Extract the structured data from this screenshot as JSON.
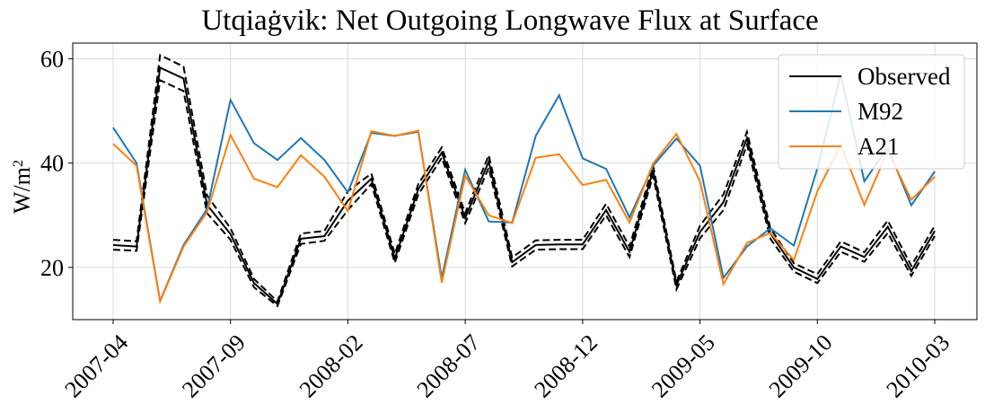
{
  "chart_data": {
    "type": "line",
    "title": "Utqiaġvik: Net Outgoing Longwave Flux at Surface",
    "ylabel_base": "W/m",
    "ylabel_sup": "2",
    "xlabel": "",
    "ylim": [
      10,
      63
    ],
    "yticks": [
      20,
      40,
      60
    ],
    "xticks": [
      "2007-04",
      "2007-09",
      "2008-02",
      "2008-07",
      "2008-12",
      "2009-05",
      "2009-10",
      "2010-03"
    ],
    "x": [
      "2007-04",
      "2007-05",
      "2007-06",
      "2007-07",
      "2007-08",
      "2007-09",
      "2007-10",
      "2007-11",
      "2007-12",
      "2008-01",
      "2008-02",
      "2008-03",
      "2008-04",
      "2008-05",
      "2008-06",
      "2008-07",
      "2008-08",
      "2008-09",
      "2008-10",
      "2008-11",
      "2008-12",
      "2009-01",
      "2009-02",
      "2009-03",
      "2009-04",
      "2009-05",
      "2009-06",
      "2009-07",
      "2009-08",
      "2009-09",
      "2009-10",
      "2009-11",
      "2009-12",
      "2010-01",
      "2010-02",
      "2010-03"
    ],
    "grid": true,
    "legend_position": "upper right",
    "series": [
      {
        "name": "Observed",
        "color": "#000000",
        "values": [
          24.3,
          24.0,
          58.3,
          56.2,
          32.0,
          26.4,
          17.0,
          13.0,
          25.5,
          26.0,
          32.8,
          37.0,
          21.7,
          35.0,
          42.0,
          29.5,
          40.3,
          21.0,
          24.3,
          24.4,
          24.4,
          31.0,
          23.0,
          38.6,
          16.6,
          26.8,
          32.5,
          44.8,
          26.5,
          20.0,
          17.8,
          24.0,
          22.0,
          27.8,
          19.3,
          27.0
        ],
        "upper": [
          25.3,
          25.0,
          60.7,
          58.5,
          33.8,
          27.5,
          17.8,
          13.5,
          26.5,
          27.0,
          34.6,
          38.0,
          22.6,
          36.0,
          43.0,
          30.4,
          41.5,
          21.9,
          25.2,
          25.3,
          25.3,
          32.2,
          24.0,
          39.5,
          17.3,
          28.0,
          34.0,
          46.0,
          27.5,
          20.8,
          18.7,
          25.0,
          22.9,
          29.0,
          20.3,
          28.0
        ],
        "lower": [
          23.4,
          23.2,
          55.9,
          53.8,
          30.4,
          25.3,
          16.2,
          12.6,
          24.5,
          25.1,
          31.0,
          36.0,
          20.9,
          34.0,
          41.0,
          28.5,
          39.1,
          20.2,
          23.4,
          23.5,
          23.5,
          30.0,
          22.0,
          37.6,
          15.8,
          25.6,
          31.0,
          43.5,
          25.5,
          19.2,
          17.0,
          23.0,
          21.1,
          26.6,
          18.4,
          26.0
        ]
      },
      {
        "name": "M92",
        "color": "#1f77b4",
        "values": [
          46.8,
          40.0,
          13.6,
          24.3,
          31.2,
          52.1,
          43.8,
          40.6,
          44.8,
          40.6,
          34.4,
          45.8,
          45.2,
          46.0,
          18.0,
          38.7,
          28.8,
          28.6,
          45.2,
          53.0,
          40.9,
          38.9,
          29.6,
          39.5,
          44.7,
          39.5,
          18.0,
          24.0,
          27.5,
          24.2,
          39.0,
          57.0,
          36.5,
          43.0,
          31.9,
          38.4
        ]
      },
      {
        "name": "A21",
        "color": "#ff7f0e",
        "values": [
          43.7,
          39.5,
          13.5,
          24.0,
          30.6,
          45.4,
          37.0,
          35.4,
          41.5,
          37.4,
          30.8,
          46.1,
          45.2,
          46.2,
          17.1,
          37.6,
          30.0,
          28.5,
          41.0,
          41.7,
          35.8,
          36.8,
          28.6,
          39.9,
          45.6,
          36.5,
          16.8,
          24.7,
          26.6,
          21.4,
          34.6,
          43.5,
          32.0,
          42.3,
          33.0,
          37.4
        ]
      }
    ]
  }
}
